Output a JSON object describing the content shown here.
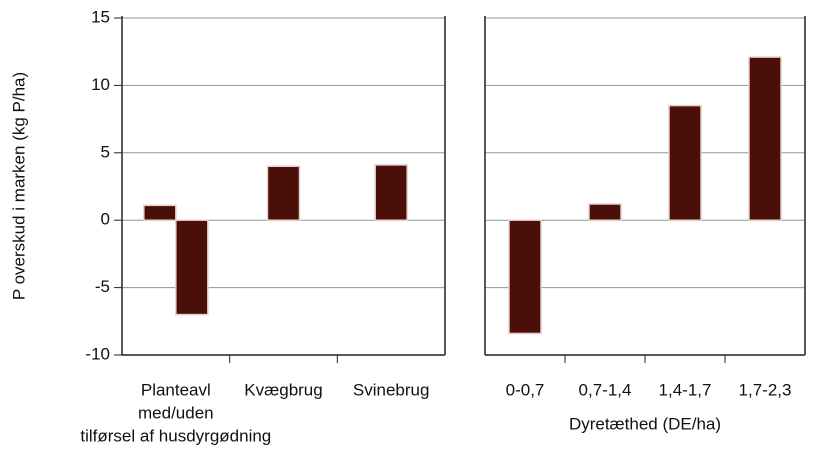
{
  "chart_data": [
    {
      "type": "bar",
      "ylabel": "P overskud i marken (kg P/ha)",
      "categories": [
        [
          "Planteavl",
          "med/uden",
          "tilførsel af husdyrgødning"
        ],
        [
          "Kvægbrug"
        ],
        [
          "Svinebrug"
        ]
      ],
      "series": [
        {
          "color": "#4a0f08",
          "values": [
            1.1,
            4.0,
            4.1
          ]
        },
        {
          "color": "#4a0f08",
          "values": [
            -7.0,
            null,
            null
          ]
        }
      ],
      "ylim": [
        -10,
        15
      ],
      "yticks": [
        -10,
        -5,
        0,
        5,
        10,
        15
      ],
      "grid": true
    },
    {
      "type": "bar",
      "xlabel": "Dyretæthed (DE/ha)",
      "categories": [
        [
          "0-0,7"
        ],
        [
          "0,7-1,4"
        ],
        [
          "1,4-1,7"
        ],
        [
          "1,7-2,3"
        ]
      ],
      "series": [
        {
          "color": "#4a0f08",
          "values": [
            -8.4,
            1.2,
            8.5,
            12.1
          ]
        }
      ],
      "ylim": [
        -10,
        15
      ],
      "yticks": [
        -10,
        -5,
        0,
        5,
        10,
        15
      ],
      "grid": true
    }
  ]
}
